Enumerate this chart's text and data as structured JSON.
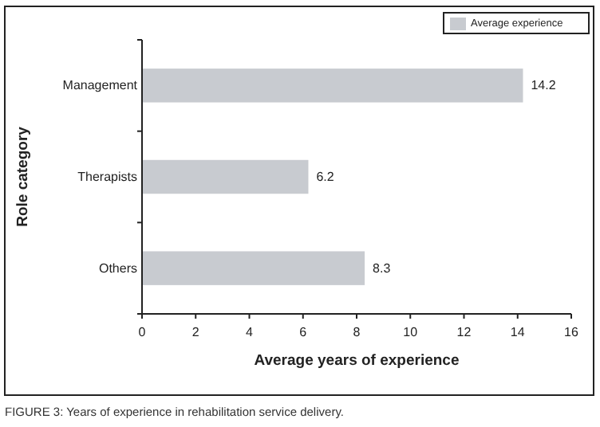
{
  "chart_data": {
    "type": "bar",
    "orientation": "horizontal",
    "categories": [
      "Management",
      "Therapists",
      "Others"
    ],
    "series": [
      {
        "name": "Average experience",
        "color": "#c8cbd0",
        "values": [
          14.2,
          6.2,
          8.3
        ]
      }
    ],
    "xlim": [
      0,
      16
    ],
    "xticks": [
      0,
      2,
      4,
      6,
      8,
      10,
      12,
      14,
      16
    ],
    "xlabel": "Average years of experience",
    "ylabel": "Role category",
    "data_labels": true,
    "legend": "top right",
    "grid": false,
    "annotations": [
      "FIGURE 3: Years of experience in rehabilitation service delivery."
    ]
  }
}
